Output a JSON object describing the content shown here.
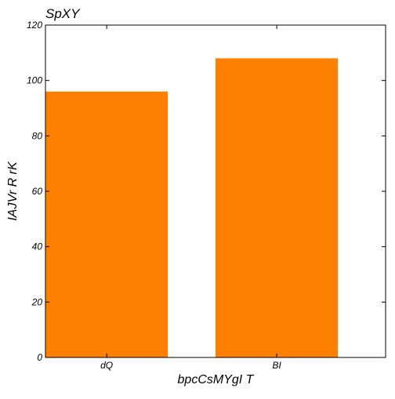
{
  "chart_data": {
    "type": "bar",
    "title": "SpXY",
    "xlabel": "bpcCsMYgI T",
    "ylabel": "IAJVr R rK",
    "categories": [
      "dQ",
      "BI"
    ],
    "values": [
      96,
      108
    ],
    "ylim": [
      0,
      120
    ],
    "yticks": [
      0,
      20,
      40,
      60,
      80,
      100,
      120
    ],
    "ytick_labels": [
      "0",
      "20",
      "40",
      "60",
      "80",
      "100",
      "120"
    ],
    "grid": false,
    "legend": "none",
    "bar_color": "#ff7f00"
  }
}
